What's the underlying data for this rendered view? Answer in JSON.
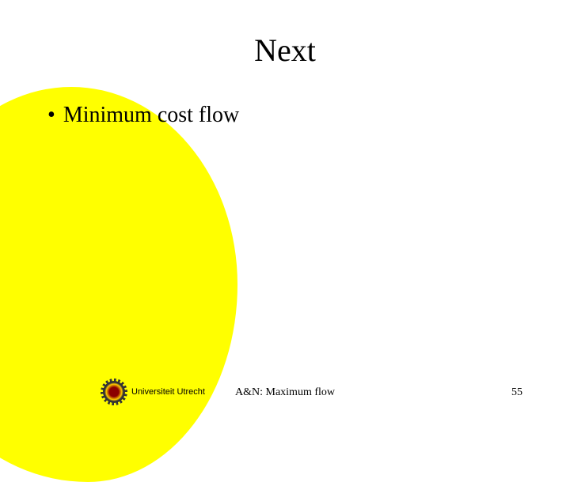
{
  "slide": {
    "title": "Next",
    "bullets": [
      "Minimum cost flow"
    ],
    "footer_text": "A&N: Maximum flow",
    "page_number": "55",
    "university": "Universiteit Utrecht",
    "colors": {
      "background": "#ffffff",
      "accent_shape": "#ffff00",
      "text": "#000000"
    },
    "typography": {
      "title_fontsize": 40,
      "bullet_fontsize": 28,
      "footer_fontsize": 14,
      "font_family": "Georgia, Times New Roman, serif"
    }
  }
}
